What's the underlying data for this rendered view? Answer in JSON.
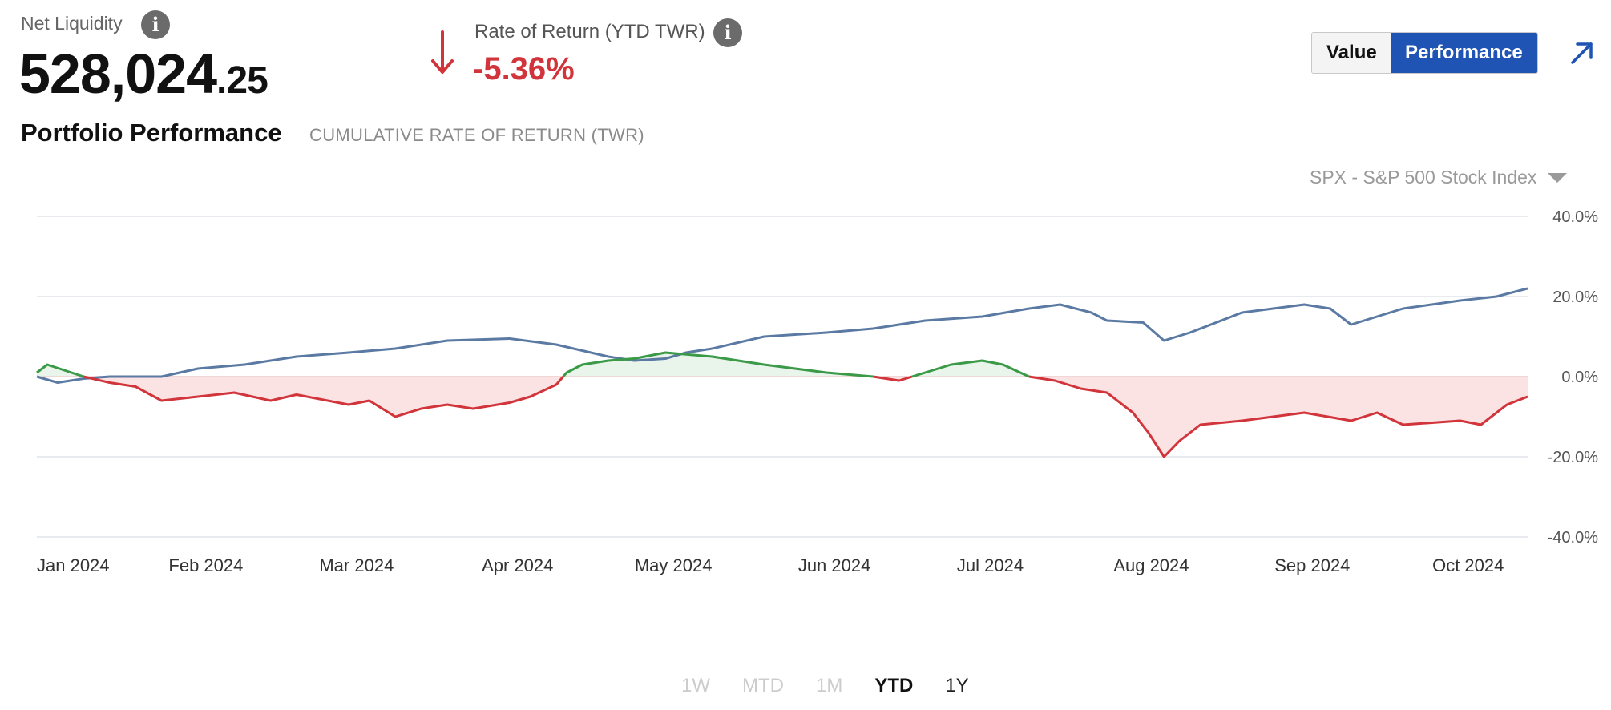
{
  "net_liquidity": {
    "label": "Net Liquidity",
    "value_main": "528,024",
    "value_cents": ".25",
    "info_icon": "info-icon"
  },
  "rate_of_return": {
    "label": "Rate of Return (YTD TWR)",
    "value": "-5.36%",
    "direction_icon": "arrow-down-icon",
    "color": "#d1343a"
  },
  "view_toggle": {
    "options": [
      "Value",
      "Performance"
    ],
    "selected": "Performance"
  },
  "expand_icon": "arrow-up-right-icon",
  "portfolio": {
    "title": "Portfolio Performance",
    "subtitle": "CUMULATIVE RATE OF RETURN (TWR)"
  },
  "benchmark": {
    "selected": "SPX - S&P 500 Stock Index"
  },
  "ranges": [
    {
      "label": "1W",
      "state": "disabled"
    },
    {
      "label": "MTD",
      "state": "disabled"
    },
    {
      "label": "1M",
      "state": "disabled"
    },
    {
      "label": "YTD",
      "state": "active"
    },
    {
      "label": "1Y",
      "state": "enabled"
    }
  ],
  "colors": {
    "benchmark_line": "#5b7aa3",
    "positive": "#3a9a48",
    "negative": "#d1343a",
    "positive_fill": "#e9f4ea",
    "negative_fill": "#fbe3e4",
    "accent": "#1f54b4"
  },
  "chart_data": {
    "type": "line",
    "y_tick_labels": [
      "40.0%",
      "20.0%",
      "0.0%",
      "-20.0%",
      "-40.0%"
    ],
    "ylim": [
      -40,
      40
    ],
    "x_tick_labels": [
      "Jan 2024",
      "Feb 2024",
      "Mar 2024",
      "Apr 2024",
      "May 2024",
      "Jun 2024",
      "Jul 2024",
      "Aug 2024",
      "Sep 2024",
      "Oct 2024"
    ],
    "grid": true,
    "series": [
      {
        "role": "benchmark",
        "x": [
          "2024-01-01",
          "2024-01-05",
          "2024-01-10",
          "2024-01-15",
          "2024-01-20",
          "2024-01-25",
          "2024-02-01",
          "2024-02-10",
          "2024-02-20",
          "2024-03-01",
          "2024-03-10",
          "2024-03-20",
          "2024-04-01",
          "2024-04-10",
          "2024-04-20",
          "2024-04-25",
          "2024-05-01",
          "2024-05-05",
          "2024-05-10",
          "2024-05-20",
          "2024-06-01",
          "2024-06-10",
          "2024-06-20",
          "2024-07-01",
          "2024-07-10",
          "2024-07-16",
          "2024-07-22",
          "2024-07-25",
          "2024-08-01",
          "2024-08-05",
          "2024-08-10",
          "2024-08-20",
          "2024-09-01",
          "2024-09-06",
          "2024-09-10",
          "2024-09-20",
          "2024-10-01",
          "2024-10-08",
          "2024-10-14"
        ],
        "y": [
          0,
          -1.5,
          -0.5,
          0,
          0,
          0,
          2,
          3,
          5,
          6,
          7,
          9,
          9.5,
          8,
          5,
          4,
          4.5,
          6,
          7,
          10,
          11,
          12,
          14,
          15,
          17,
          18,
          16,
          14,
          13.5,
          9,
          11,
          16,
          18,
          17,
          13,
          17,
          19,
          20,
          22
        ]
      },
      {
        "role": "portfolio",
        "x": [
          "2024-01-01",
          "2024-01-03",
          "2024-01-10",
          "2024-01-15",
          "2024-01-20",
          "2024-01-25",
          "2024-02-01",
          "2024-02-08",
          "2024-02-15",
          "2024-02-20",
          "2024-03-01",
          "2024-03-05",
          "2024-03-10",
          "2024-03-15",
          "2024-03-20",
          "2024-03-25",
          "2024-04-01",
          "2024-04-05",
          "2024-04-10",
          "2024-04-12",
          "2024-04-15",
          "2024-04-20",
          "2024-04-25",
          "2024-05-01",
          "2024-05-10",
          "2024-05-20",
          "2024-06-01",
          "2024-06-10",
          "2024-06-15",
          "2024-06-20",
          "2024-06-25",
          "2024-07-01",
          "2024-07-05",
          "2024-07-10",
          "2024-07-15",
          "2024-07-20",
          "2024-07-25",
          "2024-07-30",
          "2024-08-02",
          "2024-08-05",
          "2024-08-08",
          "2024-08-12",
          "2024-08-20",
          "2024-09-01",
          "2024-09-10",
          "2024-09-15",
          "2024-09-20",
          "2024-10-01",
          "2024-10-05",
          "2024-10-10",
          "2024-10-14"
        ],
        "y": [
          1,
          3,
          0,
          -1.5,
          -2.5,
          -6,
          -5,
          -4,
          -6,
          -4.5,
          -7,
          -6,
          -10,
          -8,
          -7,
          -8,
          -6.5,
          -5,
          -2,
          1,
          3,
          4,
          4.5,
          6,
          5,
          3,
          1,
          0,
          -1,
          1,
          3,
          4,
          3,
          0,
          -1,
          -3,
          -4,
          -9,
          -14,
          -20,
          -16,
          -12,
          -11,
          -9,
          -11,
          -9,
          -12,
          -11,
          -12,
          -7,
          -5
        ]
      }
    ]
  }
}
